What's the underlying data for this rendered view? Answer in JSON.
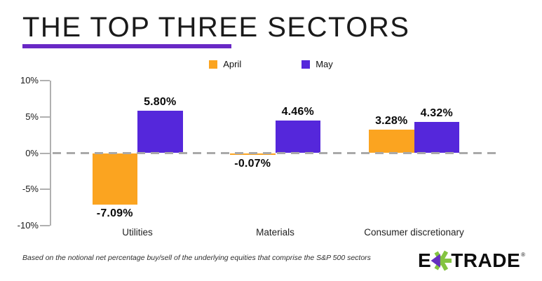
{
  "title": "THE TOP THREE SECTORS",
  "colors": {
    "april_orange": "#FBA420",
    "may_purple": "#5527DB",
    "title_underline_purple": "#6928C5",
    "axis_gray": "#B0B0B0",
    "zero_dash_gray": "#A9A9A9",
    "logo_green": "#84C441",
    "logo_purple": "#642FC0"
  },
  "legend": {
    "items": [
      {
        "label": "April",
        "color": "#FBA420"
      },
      {
        "label": "May",
        "color": "#5527DB"
      }
    ]
  },
  "chart_data": {
    "type": "bar",
    "title": "THE TOP THREE SECTORS",
    "categories": [
      "Utilities",
      "Materials",
      "Consumer discretionary"
    ],
    "series": [
      {
        "name": "April",
        "color": "#FBA420",
        "values": [
          -7.09,
          -0.07,
          3.28
        ],
        "labels": [
          "-7.09%",
          "-0.07%",
          "3.28%"
        ]
      },
      {
        "name": "May",
        "color": "#5527DB",
        "values": [
          5.8,
          4.46,
          4.32
        ],
        "labels": [
          "5.80%",
          "4.46%",
          "4.32%"
        ]
      }
    ],
    "xlabel": "",
    "ylabel": "",
    "ylim": [
      -10,
      10
    ],
    "yticks": [
      10,
      5,
      0,
      -5,
      -10
    ],
    "ytick_labels": [
      "10%",
      "5%",
      "0%",
      "-5%",
      "-10%"
    ],
    "grid": false,
    "zero_line_style": "dashed",
    "legend_position": "top-center"
  },
  "footnote": "Based on the notional net percentage buy/sell of the underlying equities that comprise the S&P 500 sectors",
  "logo": {
    "prefix": "E",
    "suffix": "TRADE",
    "asterisk": "etrade-asterisk-icon",
    "registered_mark": "®"
  }
}
